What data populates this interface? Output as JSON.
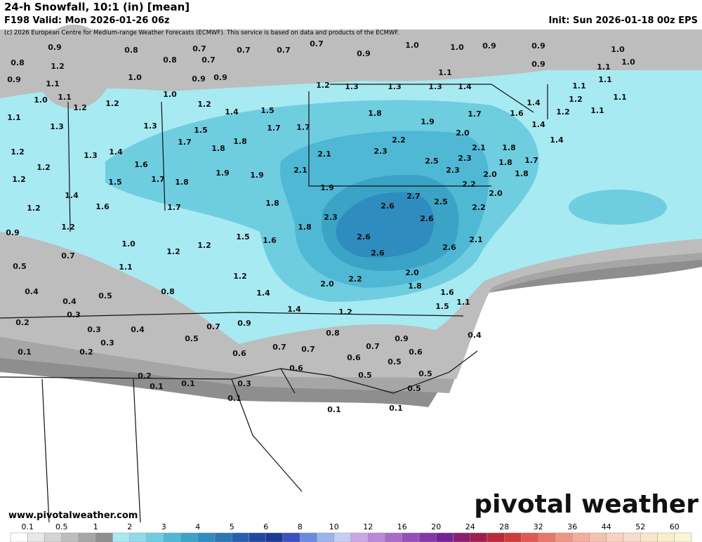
{
  "header": {
    "title": "24-h Snowfall, 10:1 (in) [mean]",
    "valid": "F198 Valid: Mon 2026-01-26 06z",
    "init": "Init: Sun 2026-01-18 00z EPS",
    "credit": "(c) 2026 European Centre for Medium-range Weather Forecasts (ECMWF). This service is based on data and products of the ECMWF."
  },
  "map": {
    "labels": [
      "0.9",
      "0.8",
      "0.7",
      "0.7",
      "0.7",
      "0.7",
      "0.9",
      "1.0",
      "1.0",
      "0.9",
      "0.9",
      "1.0",
      "0.8",
      "1.2",
      "0.8",
      "0.7",
      "1.1",
      "0.9",
      "1.0",
      "0.9",
      "1.1",
      "1.0",
      "0.9",
      "0.9",
      "1.1",
      "1.1",
      "1.0",
      "1.1",
      "1.0",
      "1.2",
      "1.3",
      "1.3",
      "1.3",
      "1.4",
      "1.1",
      "1.1",
      "1.2",
      "1.2",
      "1.2",
      "1.4",
      "1.5",
      "1.8",
      "1.7",
      "1.4",
      "1.6",
      "1.2",
      "1.2",
      "1.1",
      "1.1",
      "1.3",
      "1.3",
      "1.5",
      "1.7",
      "1.7",
      "1.9",
      "2.0",
      "1.4",
      "1.2",
      "1.3",
      "1.4",
      "1.7",
      "1.8",
      "1.8",
      "2.2",
      "2.3",
      "2.1",
      "1.8",
      "1.4",
      "2.1",
      "2.3",
      "2.5",
      "1.7",
      "1.8",
      "1.2",
      "1.6",
      "1.9",
      "1.9",
      "2.1",
      "2.3",
      "2.0",
      "1.8",
      "1.2",
      "1.5",
      "1.7",
      "1.8",
      "1.9",
      "2.2",
      "2.0",
      "2.7",
      "2.6",
      "2.5",
      "2.2",
      "1.4",
      "1.6",
      "1.7",
      "1.8",
      "1.2",
      "2.3",
      "2.6",
      "1.2",
      "1.8",
      "0.9",
      "1.5",
      "1.6",
      "2.6",
      "2.6",
      "2.1",
      "1.0",
      "1.2",
      "1.2",
      "2.6",
      "0.7",
      "0.5",
      "1.1",
      "1.2",
      "2.0",
      "2.2",
      "1.8",
      "2.0",
      "1.4",
      "1.6",
      "0.4",
      "0.5",
      "0.8",
      "0.4",
      "1.1",
      "1.5",
      "1.4",
      "1.2",
      "0.3",
      "0.2",
      "0.3",
      "0.4",
      "0.7",
      "0.9",
      "0.8",
      "0.9",
      "0.4",
      "0.5",
      "0.3",
      "0.7",
      "0.7",
      "0.7",
      "0.6",
      "0.6",
      "0.1",
      "0.2",
      "0.6",
      "0.5",
      "0.6",
      "0.5",
      "0.5",
      "0.2",
      "0.1",
      "0.1",
      "0.3",
      "0.5",
      "0.1",
      "0.1",
      "0.1"
    ]
  },
  "legend": {
    "ticks": [
      0.1,
      0.5,
      1,
      2,
      3,
      4,
      5,
      6,
      8,
      10,
      12,
      16,
      20,
      24,
      28,
      32,
      36,
      44,
      52,
      60
    ],
    "colors": [
      "#ffffff",
      "#e8e8e8",
      "#d4d4d4",
      "#bdbdbd",
      "#a6a6a6",
      "#8e8e8e",
      "#a8eaf2",
      "#8fdbe8",
      "#6fcde0",
      "#4fb8d4",
      "#3aa3c6",
      "#2e8cbf",
      "#2a75b6",
      "#2660ac",
      "#1f4aa0",
      "#1c3a94",
      "#3a4fc0",
      "#6a8ae0",
      "#9bb4ec",
      "#c4cff2",
      "#c9a8e6",
      "#b98ad8",
      "#a66cc8",
      "#9450b8",
      "#8338a8",
      "#722296",
      "#8a1e6e",
      "#a01e4e",
      "#b82a3c",
      "#cc3c3c",
      "#dd5a52",
      "#e6786a",
      "#ee9684",
      "#f2ae9c",
      "#f4c2b0",
      "#f6d2c0",
      "#f8dccc",
      "#f8e6c8",
      "#f8eeca",
      "#fbf5d8"
    ]
  },
  "footer": {
    "website": "www.pivotalweather.com",
    "brand": "pivotal weather"
  }
}
